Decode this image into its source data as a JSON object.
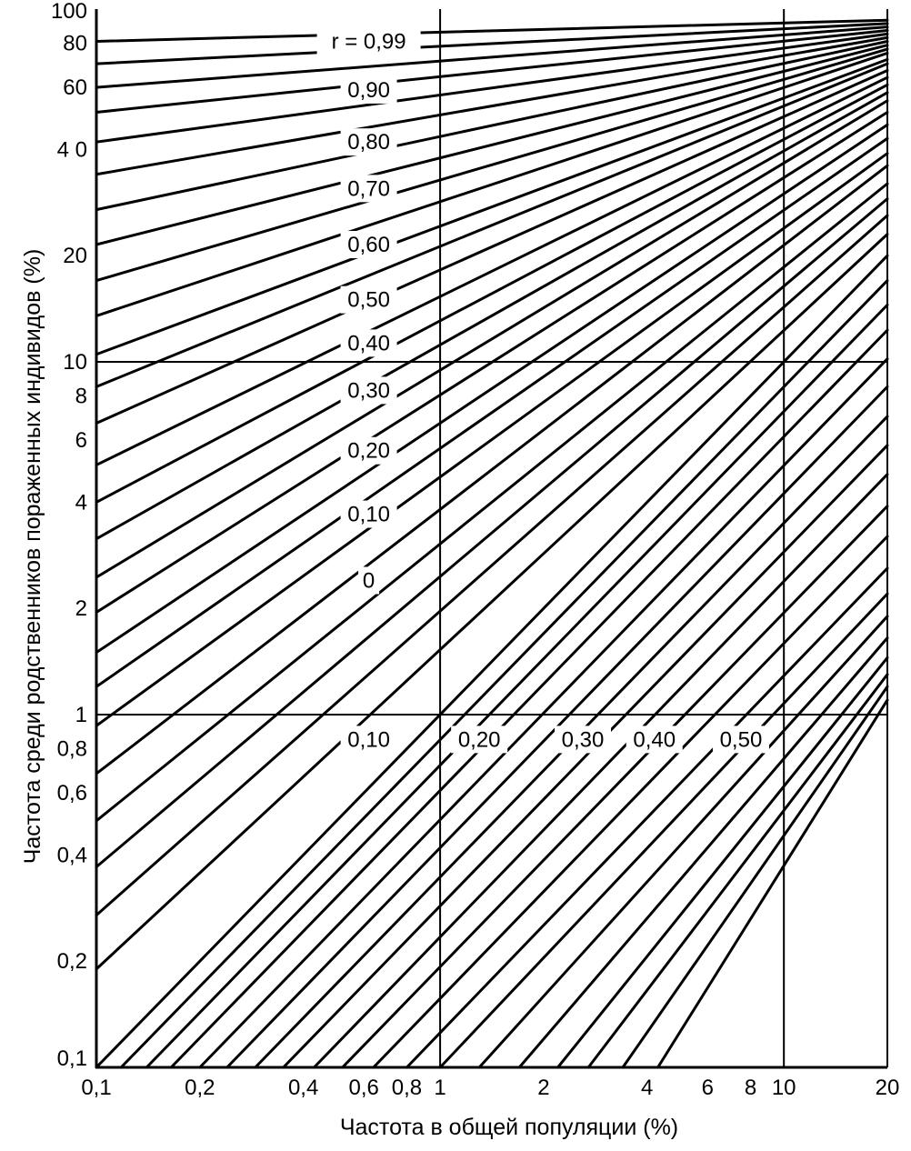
{
  "chart_data": {
    "type": "line",
    "xlabel": "Частота в общей популяции (%)",
    "ylabel": "Частота среди родственников пораженных индивидов (%)",
    "x_scale": "log",
    "y_scale": "log",
    "xlim": [
      0.1,
      20
    ],
    "ylim": [
      0.1,
      100
    ],
    "grid_x": [
      1,
      10
    ],
    "grid_y": [
      1,
      10
    ],
    "x_ticks": [
      {
        "value": 0.1,
        "label": "0,1"
      },
      {
        "value": 0.2,
        "label": "0,2"
      },
      {
        "value": 0.4,
        "label": "0,4"
      },
      {
        "value": 0.6,
        "label": "0,6"
      },
      {
        "value": 0.8,
        "label": "0,8"
      },
      {
        "value": 1,
        "label": "1"
      },
      {
        "value": 2,
        "label": "2"
      },
      {
        "value": 4,
        "label": "4"
      },
      {
        "value": 6,
        "label": "6"
      },
      {
        "value": 8,
        "label": "8"
      },
      {
        "value": 10,
        "label": "10"
      },
      {
        "value": 20,
        "label": "20"
      }
    ],
    "y_ticks": [
      {
        "value": 0.1,
        "label": "0,1"
      },
      {
        "value": 0.2,
        "label": "0,2"
      },
      {
        "value": 0.4,
        "label": "0,4"
      },
      {
        "value": 0.6,
        "label": "0,6"
      },
      {
        "value": 0.8,
        "label": "0,8"
      },
      {
        "value": 1,
        "label": "1"
      },
      {
        "value": 2,
        "label": "2"
      },
      {
        "value": 4,
        "label": "4"
      },
      {
        "value": 6,
        "label": "6"
      },
      {
        "value": 8,
        "label": "8"
      },
      {
        "value": 10,
        "label": "10"
      },
      {
        "value": 20,
        "label": "20"
      },
      {
        "value": 40,
        "label": "4 0"
      },
      {
        "value": 60,
        "label": "60"
      },
      {
        "value": 80,
        "label": "80"
      },
      {
        "value": 100,
        "label": "100"
      }
    ],
    "series": [
      {
        "label": "r = 0,99",
        "points": [
          [
            0.1,
            81
          ],
          [
            20,
            93
          ]
        ]
      },
      {
        "points": [
          [
            0.1,
            70
          ],
          [
            20,
            91
          ]
        ]
      },
      {
        "points": [
          [
            0.1,
            60
          ],
          [
            20,
            89
          ]
        ]
      },
      {
        "label": "0,90",
        "points": [
          [
            0.1,
            51
          ],
          [
            20,
            87
          ]
        ]
      },
      {
        "points": [
          [
            0.1,
            42
          ],
          [
            20,
            85
          ]
        ]
      },
      {
        "label": "0,80",
        "points": [
          [
            0.1,
            34
          ],
          [
            20,
            83
          ]
        ]
      },
      {
        "points": [
          [
            0.1,
            27
          ],
          [
            20,
            81
          ]
        ]
      },
      {
        "label": "0,70",
        "points": [
          [
            0.1,
            21.5
          ],
          [
            20,
            79
          ]
        ]
      },
      {
        "points": [
          [
            0.1,
            17
          ],
          [
            20,
            77
          ]
        ]
      },
      {
        "label": "0,60",
        "points": [
          [
            0.1,
            13.5
          ],
          [
            20,
            75
          ]
        ]
      },
      {
        "points": [
          [
            0.1,
            10.5
          ],
          [
            20,
            72
          ]
        ]
      },
      {
        "label": "0,50",
        "points": [
          [
            0.1,
            8.5
          ],
          [
            20,
            70
          ]
        ]
      },
      {
        "points": [
          [
            0.1,
            6.7
          ],
          [
            20,
            67
          ]
        ]
      },
      {
        "label": "0,40",
        "points": [
          [
            0.1,
            5.1
          ],
          [
            20,
            64
          ]
        ]
      },
      {
        "points": [
          [
            0.1,
            4
          ],
          [
            20,
            61
          ]
        ]
      },
      {
        "label": "0,30",
        "points": [
          [
            0.1,
            3.15
          ],
          [
            20,
            58
          ]
        ]
      },
      {
        "points": [
          [
            0.1,
            2.45
          ],
          [
            20,
            55
          ]
        ]
      },
      {
        "label": "0,20",
        "points": [
          [
            0.1,
            1.95
          ],
          [
            20,
            51
          ]
        ]
      },
      {
        "points": [
          [
            0.1,
            1.5
          ],
          [
            20,
            47
          ]
        ]
      },
      {
        "label": "0,10",
        "points": [
          [
            0.1,
            1.2
          ],
          [
            20,
            43
          ]
        ]
      },
      {
        "points": [
          [
            0.1,
            0.93
          ],
          [
            20,
            39
          ]
        ]
      },
      {
        "points": [
          [
            0.1,
            0.68
          ],
          [
            20,
            36
          ]
        ]
      },
      {
        "label": "0",
        "points": [
          [
            0.1,
            0.5
          ],
          [
            20,
            32
          ]
        ]
      },
      {
        "points": [
          [
            0.1,
            0.37
          ],
          [
            20,
            29
          ]
        ]
      },
      {
        "points": [
          [
            0.1,
            0.27
          ],
          [
            20,
            26
          ]
        ]
      },
      {
        "points": [
          [
            0.1,
            0.19
          ],
          [
            20,
            23
          ]
        ]
      },
      {
        "label": "0,10",
        "points": [
          [
            0.1,
            0.1
          ],
          [
            20,
            20
          ]
        ]
      },
      {
        "points": [
          [
            0.118,
            0.1
          ],
          [
            20,
            17
          ]
        ]
      },
      {
        "points": [
          [
            0.14,
            0.1
          ],
          [
            20,
            14.5
          ]
        ]
      },
      {
        "points": [
          [
            0.165,
            0.1
          ],
          [
            20,
            12.3
          ]
        ]
      },
      {
        "points": [
          [
            0.2,
            0.1
          ],
          [
            20,
            10.2
          ]
        ]
      },
      {
        "label": "0,20",
        "points": [
          [
            0.24,
            0.1
          ],
          [
            20,
            8.5
          ]
        ]
      },
      {
        "points": [
          [
            0.29,
            0.1
          ],
          [
            20,
            7
          ]
        ]
      },
      {
        "points": [
          [
            0.35,
            0.1
          ],
          [
            20,
            5.8
          ]
        ]
      },
      {
        "points": [
          [
            0.43,
            0.1
          ],
          [
            20,
            4.8
          ]
        ]
      },
      {
        "points": [
          [
            0.52,
            0.1
          ],
          [
            20,
            3.9
          ]
        ]
      },
      {
        "label": "0,30",
        "points": [
          [
            0.64,
            0.1
          ],
          [
            20,
            3.2
          ]
        ]
      },
      {
        "points": [
          [
            0.8,
            0.1
          ],
          [
            20,
            2.6
          ]
        ]
      },
      {
        "points": [
          [
            1.0,
            0.1
          ],
          [
            20,
            2.2
          ]
        ]
      },
      {
        "points": [
          [
            1.3,
            0.1
          ],
          [
            20,
            1.9
          ]
        ]
      },
      {
        "label": "0,40",
        "points": [
          [
            1.7,
            0.1
          ],
          [
            20,
            1.65
          ]
        ]
      },
      {
        "points": [
          [
            2.2,
            0.1
          ],
          [
            20,
            1.45
          ]
        ]
      },
      {
        "points": [
          [
            2.7,
            0.1
          ],
          [
            20,
            1.3
          ]
        ]
      },
      {
        "points": [
          [
            3.4,
            0.1
          ],
          [
            20,
            1.2
          ]
        ]
      },
      {
        "label": "0,50",
        "points": [
          [
            4.3,
            0.1
          ],
          [
            20,
            1.1
          ]
        ]
      }
    ],
    "curve_labels": [
      {
        "text": "r = 0,99",
        "x": 0.62,
        "y": 81
      },
      {
        "text": "0,90",
        "x": 0.62,
        "y": 59
      },
      {
        "text": "0,80",
        "x": 0.62,
        "y": 42
      },
      {
        "text": "0,70",
        "x": 0.62,
        "y": 31
      },
      {
        "text": "0,60",
        "x": 0.62,
        "y": 21.5
      },
      {
        "text": "0,50",
        "x": 0.62,
        "y": 15
      },
      {
        "text": "0,40",
        "x": 0.62,
        "y": 11.3
      },
      {
        "text": "0,30",
        "x": 0.62,
        "y": 8.3
      },
      {
        "text": "0,20",
        "x": 0.62,
        "y": 5.6
      },
      {
        "text": "0,10",
        "x": 0.62,
        "y": 3.7
      },
      {
        "text": "0",
        "x": 0.62,
        "y": 2.4
      },
      {
        "text": "0,10",
        "x": 0.62,
        "y": 0.85
      },
      {
        "text": "0,20",
        "x": 1.3,
        "y": 0.85
      },
      {
        "text": "0,30",
        "x": 2.6,
        "y": 0.85
      },
      {
        "text": "0,40",
        "x": 4.2,
        "y": 0.85
      },
      {
        "text": "0,50",
        "x": 7.5,
        "y": 0.85
      }
    ]
  }
}
